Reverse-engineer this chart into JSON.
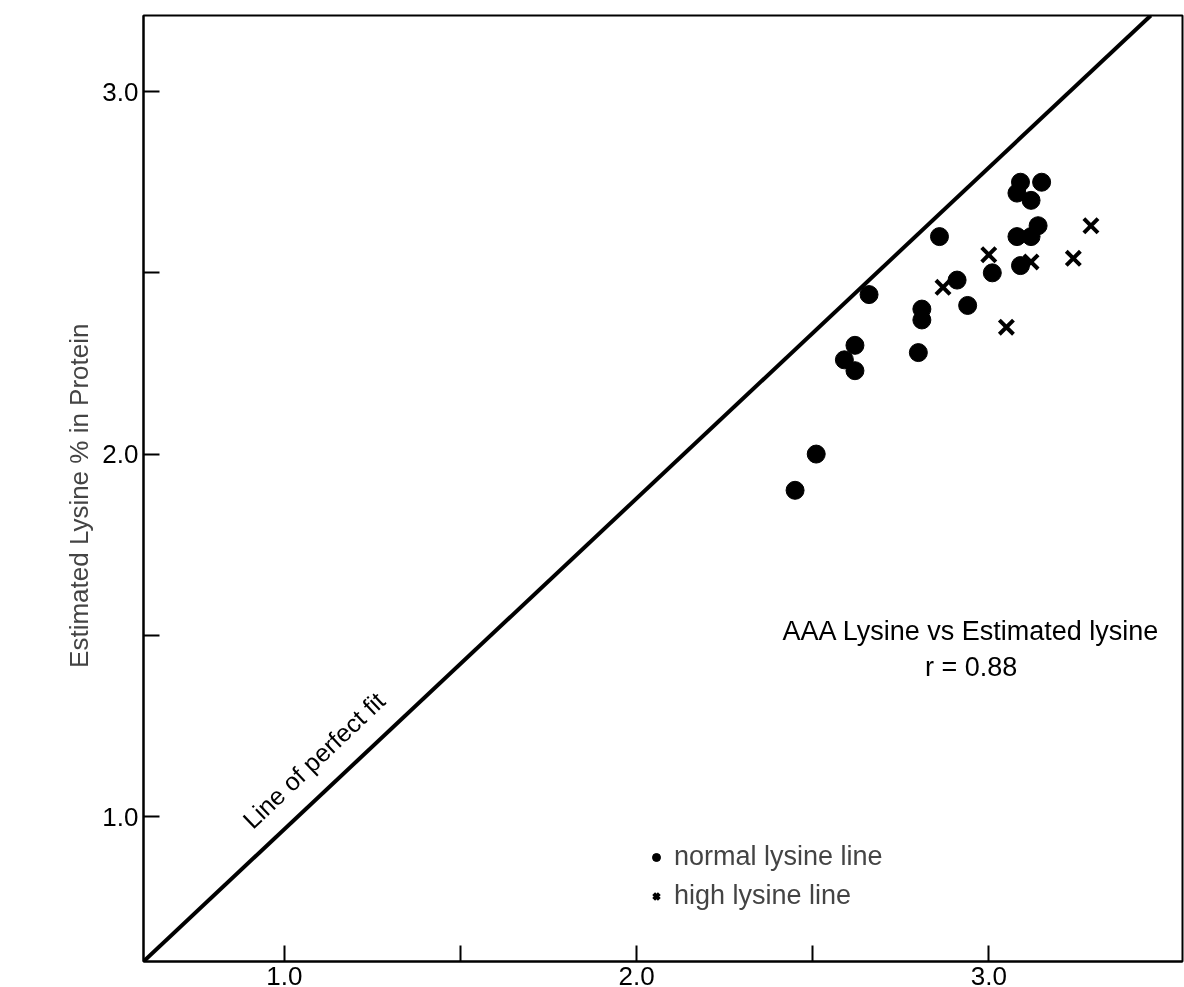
{
  "chart_data": {
    "type": "scatter",
    "ylabel": "Estimated  Lysine  % in Protein",
    "xlim": [
      0.6,
      3.55
    ],
    "ylim": [
      0.6,
      3.21
    ],
    "xticks": [
      {
        "value": 1.0,
        "label": "1.0"
      },
      {
        "value": 1.5,
        "label": null
      },
      {
        "value": 2.0,
        "label": "2.0"
      },
      {
        "value": 2.5,
        "label": null
      },
      {
        "value": 3.0,
        "label": "3.0"
      }
    ],
    "yticks": [
      {
        "value": 1.0,
        "label": "1.0"
      },
      {
        "value": 1.5,
        "label": null
      },
      {
        "value": 2.0,
        "label": "2.0"
      },
      {
        "value": 2.5,
        "label": null
      },
      {
        "value": 3.0,
        "label": "3.0"
      }
    ],
    "grid": false,
    "legend": "bottom right",
    "annotations": [
      "AAA Lysine vs Estimated lysine",
      "r = 0.88"
    ],
    "series": [
      {
        "type": "line",
        "name": "Line of perfect fit",
        "color": "#000000",
        "x": [
          0.6,
          3.46
        ],
        "values": [
          0.6,
          3.21
        ]
      },
      {
        "name": "normal lysine line",
        "color": "#000000",
        "marker": "circle",
        "x": [
          3.09,
          3.15,
          3.08,
          3.12,
          3.14,
          3.12,
          3.08,
          2.86,
          3.09,
          3.01,
          2.91,
          2.66,
          2.94,
          2.81,
          2.81,
          2.62,
          2.8,
          2.59,
          2.62,
          2.51,
          2.45
        ],
        "values": [
          2.75,
          2.75,
          2.72,
          2.7,
          2.63,
          2.6,
          2.6,
          2.6,
          2.52,
          2.5,
          2.48,
          2.44,
          2.41,
          2.4,
          2.37,
          2.3,
          2.28,
          2.26,
          2.23,
          2.0,
          1.9
        ]
      },
      {
        "name": "high lysine line",
        "color": "#000000",
        "marker": "cross",
        "x": [
          3.29,
          3.0,
          3.12,
          3.24,
          2.87,
          3.05
        ],
        "values": [
          2.63,
          2.55,
          2.53,
          2.54,
          2.46,
          2.35
        ]
      }
    ]
  }
}
